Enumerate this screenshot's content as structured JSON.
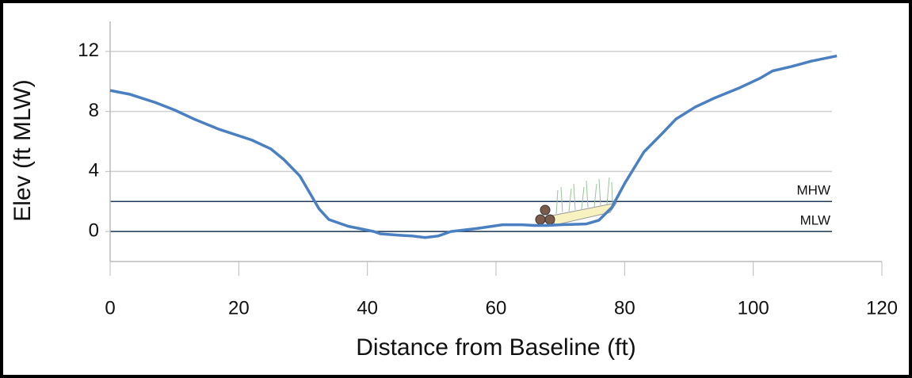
{
  "chart_data": {
    "type": "line",
    "x_label": "Distance from Baseline (ft)",
    "y_label": "Elev (ft MLW)",
    "x": [
      0,
      3,
      7,
      10,
      13,
      17,
      22,
      25,
      27,
      29.5,
      31,
      32.5,
      34,
      37,
      41,
      42,
      45,
      47,
      49,
      51,
      53,
      57,
      61,
      64,
      66,
      68,
      70,
      74,
      76,
      78,
      80,
      83,
      86,
      88,
      91,
      94,
      98,
      101,
      103,
      106,
      109,
      113
    ],
    "series": [
      {
        "color": "#4a7fc1",
        "values": [
          9.4,
          9.15,
          8.6,
          8.1,
          7.5,
          6.8,
          6.1,
          5.5,
          4.8,
          3.7,
          2.6,
          1.5,
          0.8,
          0.35,
          0,
          -0.15,
          -0.25,
          -0.3,
          -0.4,
          -0.3,
          0,
          0.2,
          0.45,
          0.45,
          0.4,
          0.4,
          0.45,
          0.5,
          0.75,
          1.6,
          3.2,
          5.3,
          6.6,
          7.5,
          8.3,
          8.9,
          9.6,
          10.2,
          10.7,
          11,
          11.35,
          11.7
        ]
      }
    ],
    "reference_lines": [
      {
        "name": "MHW",
        "value": 2,
        "color": "#1f3a5a"
      },
      {
        "name": "MLW",
        "value": 0,
        "color": "#1f3a5a"
      }
    ],
    "xlim": [
      0,
      120
    ],
    "xticks": [
      0,
      20,
      40,
      60,
      80,
      100,
      120
    ],
    "ylim": [
      -2,
      14
    ],
    "yticks": [
      0,
      4,
      8,
      12
    ],
    "grid": true
  }
}
